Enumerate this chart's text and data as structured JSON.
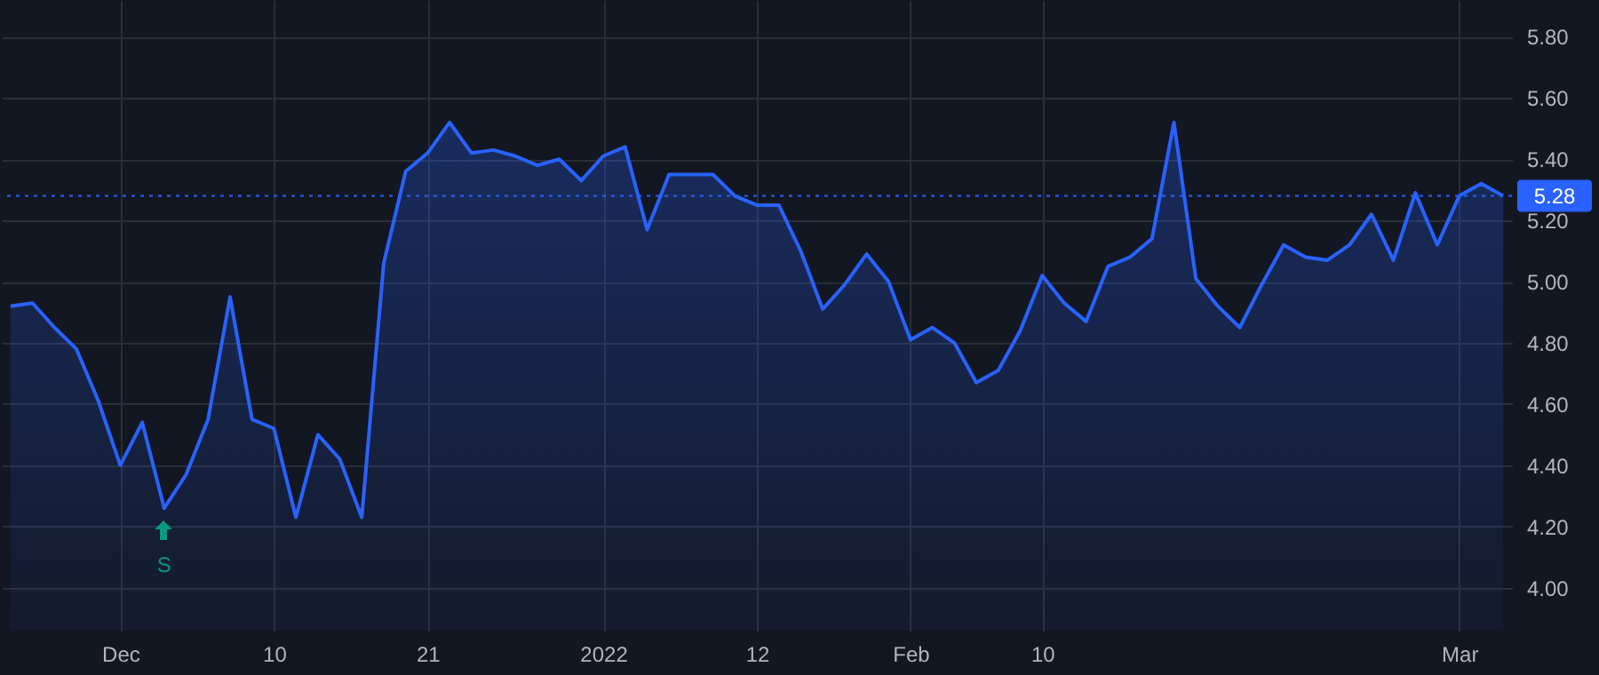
{
  "chart_data": {
    "type": "area",
    "categories": [
      null,
      null,
      null,
      null,
      null,
      "Dec",
      null,
      null,
      null,
      null,
      null,
      null,
      "10",
      null,
      null,
      null,
      null,
      null,
      null,
      "21",
      null,
      null,
      null,
      null,
      null,
      null,
      null,
      "2022",
      null,
      null,
      null,
      null,
      null,
      null,
      "12",
      null,
      null,
      null,
      null,
      null,
      null,
      "Feb",
      null,
      null,
      null,
      null,
      null,
      "10",
      null,
      null,
      null,
      null,
      null,
      null,
      null,
      null,
      null,
      null,
      null,
      null,
      null,
      null,
      null,
      null,
      null,
      null,
      "Mar",
      null,
      null
    ],
    "series": [
      {
        "color": "#2962ff",
        "values": [
          4.92,
          4.93,
          4.85,
          4.78,
          4.61,
          4.4,
          4.54,
          4.26,
          4.37,
          4.55,
          4.95,
          4.55,
          4.52,
          4.23,
          4.5,
          4.42,
          4.23,
          5.06,
          5.36,
          5.42,
          5.52,
          5.42,
          5.43,
          5.41,
          5.38,
          5.4,
          5.33,
          5.41,
          5.44,
          5.17,
          5.35,
          5.35,
          5.35,
          5.28,
          5.25,
          5.25,
          5.1,
          4.91,
          4.99,
          5.09,
          5.0,
          4.81,
          4.85,
          4.8,
          4.67,
          4.71,
          4.84,
          5.02,
          4.93,
          4.87,
          5.05,
          5.08,
          5.14,
          5.52,
          5.01,
          4.92,
          4.85,
          4.99,
          5.12,
          5.08,
          5.07,
          5.12,
          5.22,
          5.07,
          5.29,
          5.12,
          5.28,
          5.32,
          5.28
        ]
      }
    ],
    "ylim": [
      3.86,
      5.92
    ],
    "yticks": [
      {
        "value": 4,
        "label": "4.00"
      },
      {
        "value": 4.2,
        "label": "4.20"
      },
      {
        "value": 4.4,
        "label": "4.40"
      },
      {
        "value": 4.6,
        "label": "4.60"
      },
      {
        "value": 4.8,
        "label": "4.80"
      },
      {
        "value": 5,
        "label": "5.00"
      },
      {
        "value": 5.2,
        "label": "5.20"
      },
      {
        "value": 5.4,
        "label": "5.40"
      },
      {
        "value": 5.6,
        "label": "5.60"
      },
      {
        "value": 5.8,
        "label": "5.80"
      }
    ],
    "ref_lines": [
      {
        "axis": "y",
        "value": 5.28,
        "label": "5.28",
        "color": "#2962ff",
        "line_style": "dotted"
      }
    ],
    "annotations": [
      {
        "text": "S",
        "y": 4.26
      }
    ],
    "grid": true
  }
}
